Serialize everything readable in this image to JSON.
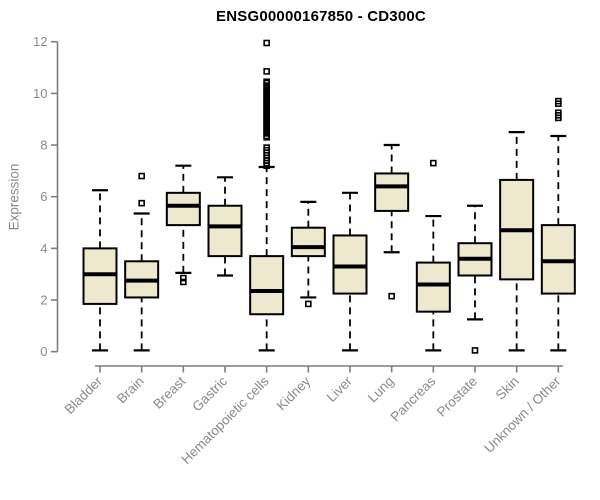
{
  "title": "ENSG00000167850 - CD300C",
  "chart_data": {
    "type": "boxplot",
    "title": "ENSG00000167850 - CD300C",
    "xlabel": "",
    "ylabel": "Expression",
    "ylim": [
      0,
      12
    ],
    "yticks": [
      0,
      2,
      4,
      6,
      8,
      10,
      12
    ],
    "grid": false,
    "legend": "none",
    "categories": [
      "Bladder",
      "Brain",
      "Breast",
      "Gastric",
      "Hematopoietic cells",
      "Kidney",
      "Liver",
      "Lung",
      "Pancreas",
      "Prostate",
      "Skin",
      "Unknown / Other"
    ],
    "boxes": [
      {
        "category": "Bladder",
        "low": 0.05,
        "q1": 1.85,
        "median": 3.0,
        "q3": 4.0,
        "high": 6.25,
        "outliers": []
      },
      {
        "category": "Brain",
        "low": 0.05,
        "q1": 2.1,
        "median": 2.75,
        "q3": 3.5,
        "high": 5.35,
        "outliers": [
          5.75,
          6.8
        ]
      },
      {
        "category": "Breast",
        "low": 3.05,
        "q1": 4.9,
        "median": 5.65,
        "q3": 6.15,
        "high": 7.2,
        "outliers": [
          2.7,
          2.85
        ]
      },
      {
        "category": "Gastric",
        "low": 2.95,
        "q1": 3.7,
        "median": 4.85,
        "q3": 5.65,
        "high": 6.75,
        "outliers": []
      },
      {
        "category": "Hematopoietic cells",
        "low": 0.05,
        "q1": 1.45,
        "median": 2.35,
        "q3": 3.7,
        "high": 7.15,
        "outliers": [
          7.2,
          7.3,
          7.4,
          7.5,
          7.6,
          7.7,
          7.8,
          7.9,
          8.3,
          8.35,
          8.45,
          8.5,
          8.6,
          8.65,
          8.75,
          8.8,
          8.9,
          8.95,
          9.05,
          9.1,
          9.2,
          9.25,
          9.35,
          9.4,
          9.5,
          9.55,
          9.65,
          9.7,
          9.8,
          9.85,
          9.95,
          10.0,
          10.1,
          10.15,
          10.25,
          10.3,
          10.4,
          10.45,
          10.85,
          11.95
        ]
      },
      {
        "category": "Kidney",
        "low": 2.1,
        "q1": 3.7,
        "median": 4.05,
        "q3": 4.8,
        "high": 5.8,
        "outliers": [
          1.85
        ]
      },
      {
        "category": "Liver",
        "low": 0.05,
        "q1": 2.25,
        "median": 3.3,
        "q3": 4.5,
        "high": 6.15,
        "outliers": []
      },
      {
        "category": "Lung",
        "low": 3.85,
        "q1": 5.45,
        "median": 6.4,
        "q3": 6.9,
        "high": 8.0,
        "outliers": [
          2.15
        ]
      },
      {
        "category": "Pancreas",
        "low": 0.05,
        "q1": 1.55,
        "median": 2.6,
        "q3": 3.45,
        "high": 5.25,
        "outliers": [
          7.3
        ]
      },
      {
        "category": "Prostate",
        "low": 1.25,
        "q1": 2.95,
        "median": 3.6,
        "q3": 4.2,
        "high": 5.65,
        "outliers": [
          0.05
        ]
      },
      {
        "category": "Skin",
        "low": 0.05,
        "q1": 2.8,
        "median": 4.7,
        "q3": 6.65,
        "high": 8.5,
        "outliers": []
      },
      {
        "category": "Unknown / Other",
        "low": 0.05,
        "q1": 2.25,
        "median": 3.5,
        "q3": 4.9,
        "high": 8.35,
        "outliers": [
          9.05,
          9.15,
          9.25,
          9.6,
          9.7
        ]
      }
    ],
    "colors": {
      "box_fill": "#EDE8CE",
      "box_border": "#000000",
      "median": "#000000",
      "whisker": "#000000",
      "outlier": "#000000",
      "axis_line": "#7d7d7d",
      "axis_text": "#8a8a8a",
      "title_text": "#000000",
      "background": "#ffffff"
    }
  }
}
